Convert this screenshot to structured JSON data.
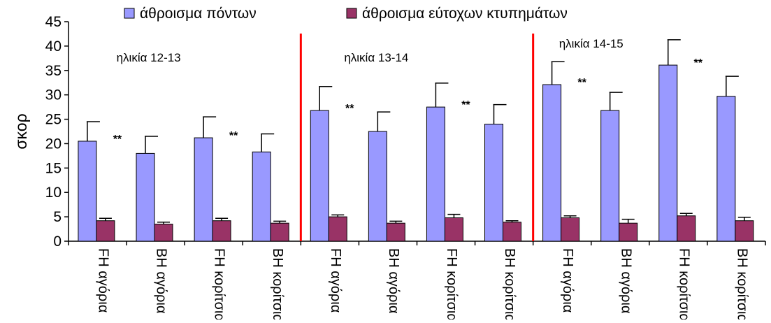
{
  "chart_data": {
    "type": "bar",
    "ylabel": "σκορ",
    "ylim": [
      0,
      45
    ],
    "yticks": [
      0,
      5,
      10,
      15,
      20,
      25,
      30,
      35,
      40,
      45
    ],
    "categories": [
      "FH αγόρια",
      "BH αγόρια",
      "FH κορίτσια",
      "BH κορίτσια",
      "FH αγόρια",
      "BH αγόρια",
      "FH κορίτσια",
      "BH κορίτσια",
      "FH αγόρια",
      "BH αγόρια",
      "FH κορίτσια",
      "BH κορίτσια"
    ],
    "series": [
      {
        "name": "άθροισμα πόντων",
        "color": "#9999ff",
        "values": [
          20.5,
          18.0,
          21.2,
          18.3,
          26.8,
          22.5,
          27.5,
          24.0,
          32.1,
          26.8,
          36.1,
          29.7
        ],
        "errors": [
          4.0,
          3.5,
          4.3,
          3.7,
          4.9,
          4.0,
          4.9,
          4.0,
          4.7,
          3.7,
          5.2,
          4.1
        ]
      },
      {
        "name": "άθροισμα εύτοχων κτυπημάτων",
        "color": "#993366",
        "values": [
          4.2,
          3.5,
          4.2,
          3.7,
          5.0,
          3.7,
          4.8,
          3.9,
          4.8,
          3.7,
          5.2,
          4.2
        ],
        "errors": [
          0.5,
          0.4,
          0.5,
          0.4,
          0.4,
          0.4,
          0.7,
          0.3,
          0.4,
          0.8,
          0.5,
          0.7
        ]
      }
    ],
    "groups": [
      {
        "label": "ηλικία 12-13"
      },
      {
        "label": "ηλικία 13-14"
      },
      {
        "label": "ηλικία 14-15"
      }
    ],
    "significance": [
      {
        "category_index": 0,
        "text": "**"
      },
      {
        "category_index": 2,
        "text": "**"
      },
      {
        "category_index": 4,
        "text": "**"
      },
      {
        "category_index": 6,
        "text": "**"
      },
      {
        "category_index": 8,
        "text": "**"
      },
      {
        "category_index": 10,
        "text": "**"
      }
    ],
    "separator_color": "#ff0000",
    "grid": false,
    "legend_position": "top"
  }
}
